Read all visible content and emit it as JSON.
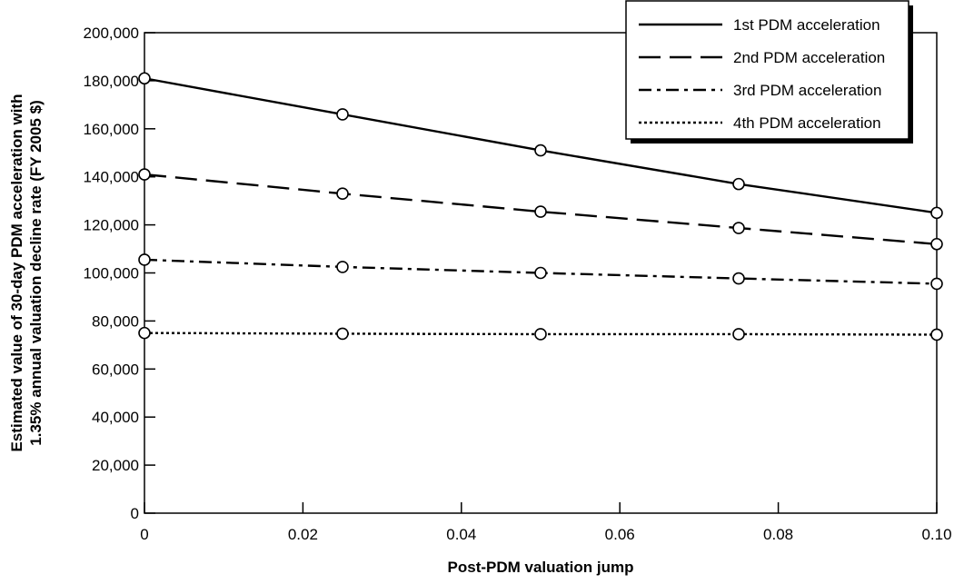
{
  "chart_data": {
    "type": "line",
    "title": "",
    "xlabel": "Post-PDM valuation jump",
    "ylabel_lines": [
      "Estimated value of 30-day PDM acceleration with",
      "1.35% annual valuation decline rate (FY 2005 $)"
    ],
    "xlim": [
      0,
      0.1
    ],
    "ylim": [
      0,
      200000
    ],
    "x": [
      0,
      0.025,
      0.05,
      0.075,
      0.1
    ],
    "x_ticks": [
      0,
      0.02,
      0.04,
      0.06,
      0.08,
      0.1
    ],
    "x_tick_labels": [
      "0",
      "0.02",
      "0.04",
      "0.06",
      "0.08",
      "0.10"
    ],
    "y_ticks": [
      0,
      20000,
      40000,
      60000,
      80000,
      100000,
      120000,
      140000,
      160000,
      180000,
      200000
    ],
    "y_tick_labels": [
      "0",
      "20,000",
      "40,000",
      "60,000",
      "80,000",
      "100,000",
      "120,000",
      "140,000",
      "160,000",
      "180,000",
      "200,000"
    ],
    "grid": false,
    "legend_position": "top-right",
    "series": [
      {
        "name": "1st PDM acceleration",
        "style": "solid",
        "values": [
          181000,
          166000,
          151000,
          137000,
          125000
        ]
      },
      {
        "name": "2nd PDM acceleration",
        "style": "dashed",
        "values": [
          141000,
          133000,
          125500,
          118700,
          112000
        ]
      },
      {
        "name": "3rd PDM acceleration",
        "style": "dash-dot",
        "values": [
          105500,
          102500,
          100000,
          97700,
          95500
        ]
      },
      {
        "name": "4th PDM acceleration",
        "style": "dotted",
        "values": [
          75000,
          74700,
          74500,
          74500,
          74300
        ]
      }
    ],
    "colors": {
      "line": "#000000",
      "marker_fill": "#ffffff",
      "background": "#ffffff"
    }
  }
}
